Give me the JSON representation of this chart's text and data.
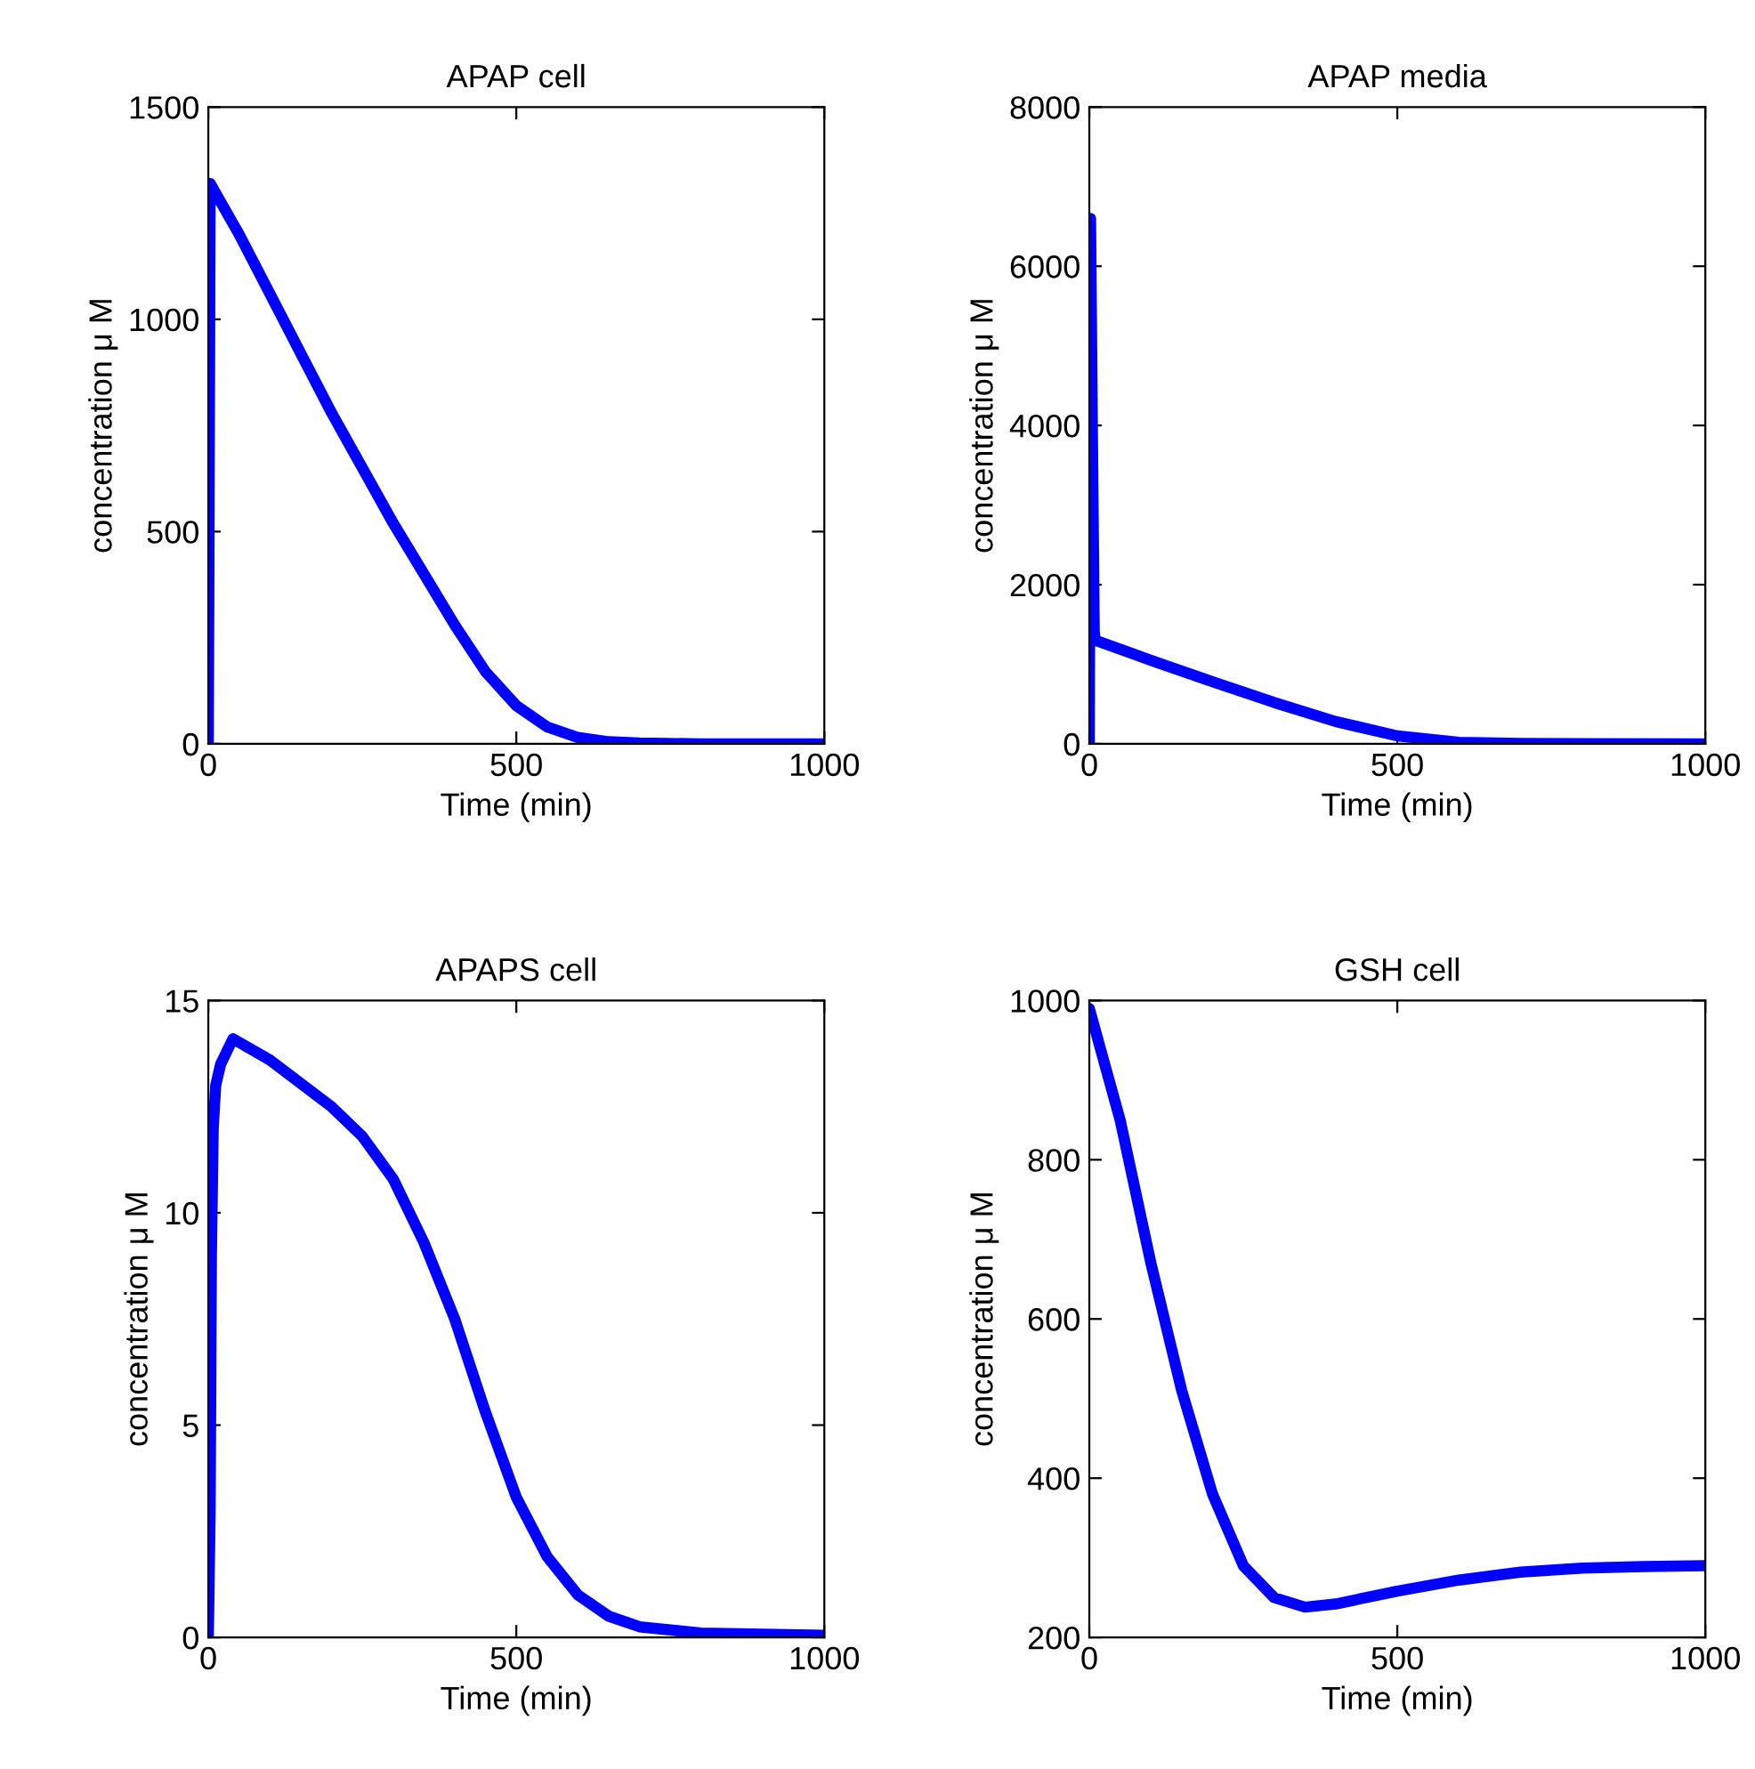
{
  "chart_data": [
    {
      "type": "line",
      "title": "APAP cell",
      "xlabel": "Time (min)",
      "ylabel": "concentration μ M",
      "xlim": [
        0,
        1000
      ],
      "xticks": [
        0,
        500,
        1000
      ],
      "ylim": [
        0,
        1500
      ],
      "yticks": [
        0,
        500,
        1000,
        1500
      ],
      "grid": false,
      "legend": false,
      "series": [
        {
          "color": "#0000ff",
          "x": [
            0,
            3,
            50,
            100,
            150,
            200,
            250,
            300,
            350,
            400,
            450,
            500,
            550,
            600,
            650,
            700,
            800,
            1000
          ],
          "values": [
            0,
            1320,
            1200,
            1060,
            920,
            780,
            650,
            520,
            400,
            280,
            170,
            90,
            40,
            15,
            5,
            2,
            0,
            0
          ]
        }
      ]
    },
    {
      "type": "line",
      "title": "APAP media",
      "xlabel": "Time (min)",
      "ylabel": "concentration μ M",
      "xlim": [
        0,
        1000
      ],
      "xticks": [
        0,
        500,
        1000
      ],
      "ylim": [
        0,
        8000
      ],
      "yticks": [
        0,
        2000,
        4000,
        6000,
        8000
      ],
      "grid": false,
      "legend": false,
      "series": [
        {
          "color": "#0000ff",
          "x": [
            0,
            2,
            5,
            8,
            10,
            100,
            200,
            300,
            400,
            500,
            600,
            700,
            1000
          ],
          "values": [
            0,
            6600,
            3900,
            1400,
            1300,
            1050,
            780,
            520,
            280,
            100,
            20,
            5,
            0
          ]
        }
      ]
    },
    {
      "type": "line",
      "title": "APAPS cell",
      "xlabel": "Time (min)",
      "ylabel": "concentration μ M",
      "xlim": [
        0,
        1000
      ],
      "xticks": [
        0,
        500,
        1000
      ],
      "ylim": [
        0,
        15
      ],
      "yticks": [
        0,
        5,
        10,
        15
      ],
      "grid": false,
      "legend": false,
      "series": [
        {
          "color": "#0000ff",
          "x": [
            0,
            3,
            5,
            8,
            12,
            20,
            40,
            100,
            200,
            250,
            300,
            350,
            400,
            450,
            500,
            550,
            600,
            650,
            700,
            800,
            1000
          ],
          "values": [
            0,
            3,
            9,
            12,
            13,
            13.5,
            14.1,
            13.6,
            12.5,
            11.8,
            10.8,
            9.3,
            7.5,
            5.3,
            3.3,
            1.9,
            1.0,
            0.5,
            0.25,
            0.1,
            0.05
          ]
        }
      ]
    },
    {
      "type": "line",
      "title": "GSH cell",
      "xlabel": "Time (min)",
      "ylabel": "concentration μ M",
      "xlim": [
        0,
        1000
      ],
      "xticks": [
        0,
        500,
        1000
      ],
      "ylim": [
        200,
        1000
      ],
      "yticks": [
        200,
        400,
        600,
        800,
        1000
      ],
      "grid": false,
      "legend": false,
      "series": [
        {
          "color": "#0000ff",
          "x": [
            0,
            50,
            100,
            150,
            200,
            250,
            300,
            350,
            400,
            500,
            600,
            700,
            800,
            900,
            1000
          ],
          "values": [
            990,
            850,
            670,
            510,
            380,
            290,
            250,
            238,
            242,
            258,
            272,
            282,
            287,
            289,
            290
          ]
        }
      ]
    }
  ]
}
